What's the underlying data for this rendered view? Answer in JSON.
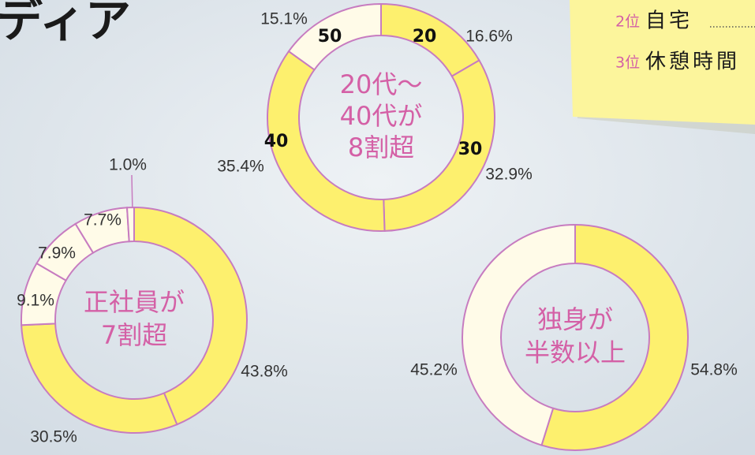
{
  "header": {
    "title": "ディア"
  },
  "note": {
    "items": [
      {
        "rank": "2位",
        "text": "自宅"
      },
      {
        "rank": "3位",
        "text": "休憩時間"
      }
    ]
  },
  "chart_data": [
    {
      "type": "donut",
      "annotation": [
        "20代～",
        "40代が",
        "8割超"
      ],
      "categories": [
        "20",
        "30",
        "40",
        "50"
      ],
      "values": [
        16.6,
        32.9,
        35.4,
        15.1
      ],
      "value_labels": [
        "16.6%",
        "32.9%",
        "35.4%",
        "15.1%"
      ],
      "colors": [
        "#fdf06e",
        "#fdf06e",
        "#fdf06e",
        "#fffbe8"
      ]
    },
    {
      "type": "donut",
      "annotation": [
        "正社員が",
        "7割超"
      ],
      "values": [
        43.8,
        30.5,
        9.1,
        7.9,
        7.7,
        1.0
      ],
      "value_labels": [
        "43.8%",
        "30.5%",
        "9.1%",
        "7.9%",
        "7.7%",
        "1.0%"
      ],
      "colors": [
        "#fdf06e",
        "#fdf06e",
        "#fffbe8",
        "#fffbe8",
        "#fffbe8",
        "#fffbe8"
      ]
    },
    {
      "type": "donut",
      "annotation": [
        "独身が",
        "半数以上"
      ],
      "values": [
        54.8,
        45.2
      ],
      "value_labels": [
        "54.8%",
        "45.2%"
      ],
      "colors": [
        "#fdf06e",
        "#fffbe8"
      ]
    }
  ]
}
